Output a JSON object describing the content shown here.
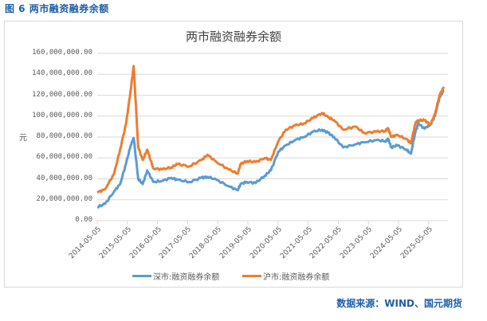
{
  "figure": {
    "caption": "图 6  两市融资融券余额",
    "source": "数据来源：WIND、国元期货"
  },
  "colors": {
    "sz": "#5b9bd5",
    "sh": "#ed7d31",
    "grid": "#d9d9d9",
    "caption": "#1f5fa8"
  },
  "chart_data": {
    "type": "line",
    "title": "两市融资融券余额",
    "xlabel": "",
    "ylabel": "元",
    "ylim": [
      0,
      160000000
    ],
    "grid": true,
    "legend_position": "bottom",
    "yticks": [
      "0.00",
      "20,000,000.00",
      "40,000,000.00",
      "60,000,000.00",
      "80,000,000.00",
      "100,000,000.00",
      "120,000,000.00",
      "140,000,000.00",
      "160,000,000.00"
    ],
    "xticks": [
      "2014-05-05",
      "2015-05-05",
      "2016-05-05",
      "2017-05-05",
      "2018-05-05",
      "2019-05-05",
      "2020-05-05",
      "2021-05-05",
      "2022-05-05",
      "2023-05-05",
      "2024-05-05",
      "2025-05-05"
    ],
    "x": [
      2014.34,
      2014.6,
      2014.9,
      2015.1,
      2015.3,
      2015.45,
      2015.55,
      2015.7,
      2015.85,
      2016.0,
      2016.2,
      2016.5,
      2016.8,
      2017.0,
      2017.4,
      2017.8,
      2018.0,
      2018.3,
      2018.7,
      2019.0,
      2019.1,
      2019.3,
      2019.6,
      2019.9,
      2020.1,
      2020.35,
      2020.6,
      2020.9,
      2021.2,
      2021.5,
      2021.8,
      2022.0,
      2022.2,
      2022.5,
      2022.9,
      2023.2,
      2023.6,
      2023.9,
      2024.0,
      2024.1,
      2024.3,
      2024.6,
      2024.75,
      2024.9,
      2025.0,
      2025.2,
      2025.4,
      2025.55,
      2025.7,
      2025.85
    ],
    "series": [
      {
        "name": "深市:融资融券余额",
        "values": [
          13000000,
          16000000,
          28000000,
          35000000,
          55000000,
          72000000,
          79000000,
          40000000,
          35000000,
          48000000,
          37000000,
          38000000,
          41000000,
          39000000,
          37000000,
          41000000,
          42000000,
          39000000,
          33000000,
          29000000,
          35000000,
          37000000,
          36000000,
          43000000,
          48000000,
          66000000,
          72000000,
          77000000,
          80000000,
          85000000,
          87000000,
          84000000,
          80000000,
          70000000,
          73000000,
          75000000,
          77000000,
          76000000,
          78000000,
          70000000,
          72000000,
          68000000,
          64000000,
          85000000,
          93000000,
          88000000,
          92000000,
          100000000,
          118000000,
          125000000
        ]
      },
      {
        "name": "沪市:融资融券余额",
        "values": [
          27000000,
          30000000,
          45000000,
          68000000,
          93000000,
          125000000,
          148000000,
          70000000,
          58000000,
          68000000,
          50000000,
          49000000,
          51000000,
          54000000,
          52000000,
          58000000,
          63000000,
          56000000,
          49000000,
          45000000,
          54000000,
          57000000,
          56000000,
          60000000,
          58000000,
          76000000,
          87000000,
          91000000,
          93000000,
          98000000,
          103000000,
          99000000,
          96000000,
          87000000,
          90000000,
          84000000,
          85000000,
          86000000,
          88000000,
          80000000,
          82000000,
          78000000,
          74000000,
          93000000,
          96000000,
          96000000,
          92000000,
          102000000,
          120000000,
          128000000
        ]
      }
    ]
  }
}
